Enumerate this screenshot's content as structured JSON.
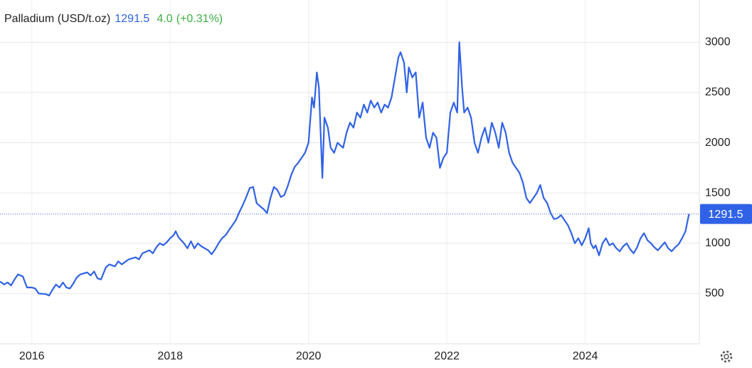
{
  "chart_data": {
    "type": "line",
    "title": "Palladium (USD/t.oz)",
    "price": 1291.5,
    "change": "4.0",
    "change_percent": "(+0.31%)",
    "color": "#2f62e6",
    "xlim": [
      2015.54,
      2025.65
    ],
    "xticks": [
      2016,
      2018,
      2020,
      2022,
      2024
    ],
    "ylim": [
      0,
      3420
    ],
    "yticks": [
      500,
      1000,
      1500,
      2000,
      2500,
      3000
    ],
    "grid": true,
    "x": [
      2015.54,
      2015.6,
      2015.65,
      2015.7,
      2015.75,
      2015.8,
      2015.87,
      2015.93,
      2016.0,
      2016.05,
      2016.1,
      2016.2,
      2016.25,
      2016.3,
      2016.35,
      2016.4,
      2016.45,
      2016.5,
      2016.55,
      2016.6,
      2016.65,
      2016.7,
      2016.8,
      2016.85,
      2016.9,
      2016.95,
      2017.0,
      2017.07,
      2017.12,
      2017.2,
      2017.25,
      2017.3,
      2017.4,
      2017.5,
      2017.55,
      2017.6,
      2017.7,
      2017.75,
      2017.8,
      2017.85,
      2017.9,
      2017.95,
      2018.0,
      2018.05,
      2018.08,
      2018.12,
      2018.2,
      2018.25,
      2018.3,
      2018.35,
      2018.4,
      2018.45,
      2018.5,
      2018.55,
      2018.6,
      2018.65,
      2018.7,
      2018.75,
      2018.8,
      2018.85,
      2018.9,
      2018.95,
      2019.0,
      2019.05,
      2019.1,
      2019.15,
      2019.2,
      2019.25,
      2019.28,
      2019.35,
      2019.4,
      2019.45,
      2019.5,
      2019.55,
      2019.6,
      2019.65,
      2019.7,
      2019.75,
      2019.8,
      2019.85,
      2019.9,
      2019.95,
      2020.0,
      2020.05,
      2020.08,
      2020.12,
      2020.15,
      2020.2,
      2020.23,
      2020.28,
      2020.32,
      2020.37,
      2020.42,
      2020.5,
      2020.55,
      2020.6,
      2020.65,
      2020.7,
      2020.75,
      2020.8,
      2020.85,
      2020.9,
      2020.95,
      2021.0,
      2021.05,
      2021.1,
      2021.15,
      2021.2,
      2021.25,
      2021.3,
      2021.33,
      2021.38,
      2021.42,
      2021.45,
      2021.5,
      2021.55,
      2021.6,
      2021.65,
      2021.7,
      2021.75,
      2021.8,
      2021.85,
      2021.9,
      2021.95,
      2022.0,
      2022.05,
      2022.1,
      2022.15,
      2022.18,
      2022.22,
      2022.25,
      2022.3,
      2022.35,
      2022.4,
      2022.45,
      2022.5,
      2022.55,
      2022.6,
      2022.65,
      2022.7,
      2022.75,
      2022.8,
      2022.85,
      2022.9,
      2022.95,
      2023.0,
      2023.05,
      2023.1,
      2023.15,
      2023.2,
      2023.25,
      2023.3,
      2023.35,
      2023.4,
      2023.45,
      2023.5,
      2023.55,
      2023.6,
      2023.65,
      2023.7,
      2023.75,
      2023.8,
      2023.85,
      2023.9,
      2023.95,
      2024.0,
      2024.05,
      2024.08,
      2024.12,
      2024.15,
      2024.2,
      2024.25,
      2024.3,
      2024.35,
      2024.4,
      2024.45,
      2024.5,
      2024.55,
      2024.6,
      2024.65,
      2024.7,
      2024.75,
      2024.8,
      2024.85,
      2024.9,
      2024.95,
      2025.0,
      2025.05,
      2025.1,
      2025.15,
      2025.2,
      2025.25,
      2025.3,
      2025.35,
      2025.4,
      2025.45,
      2025.5
    ],
    "values": [
      620,
      590,
      610,
      580,
      640,
      690,
      670,
      560,
      560,
      550,
      500,
      495,
      480,
      540,
      590,
      560,
      610,
      560,
      550,
      600,
      660,
      690,
      710,
      680,
      720,
      650,
      640,
      760,
      790,
      770,
      820,
      790,
      840,
      860,
      840,
      900,
      930,
      900,
      960,
      1000,
      980,
      1010,
      1050,
      1080,
      1120,
      1060,
      1000,
      950,
      1020,
      950,
      1000,
      970,
      950,
      930,
      890,
      940,
      1000,
      1050,
      1080,
      1130,
      1180,
      1230,
      1310,
      1380,
      1460,
      1550,
      1560,
      1400,
      1380,
      1340,
      1300,
      1450,
      1560,
      1530,
      1460,
      1480,
      1570,
      1680,
      1760,
      1800,
      1850,
      1900,
      2000,
      2450,
      2350,
      2700,
      2550,
      1650,
      2250,
      2150,
      1950,
      1900,
      2000,
      1950,
      2100,
      2200,
      2150,
      2300,
      2250,
      2380,
      2300,
      2420,
      2350,
      2400,
      2300,
      2380,
      2350,
      2450,
      2650,
      2850,
      2900,
      2800,
      2500,
      2750,
      2650,
      2700,
      2250,
      2400,
      2050,
      1950,
      2100,
      2050,
      1750,
      1850,
      1900,
      2300,
      2400,
      2300,
      3000,
      2550,
      2300,
      2350,
      2250,
      2000,
      1900,
      2050,
      2150,
      2000,
      2200,
      2100,
      1950,
      2200,
      2100,
      1900,
      1800,
      1750,
      1700,
      1600,
      1450,
      1400,
      1450,
      1500,
      1580,
      1450,
      1400,
      1300,
      1240,
      1250,
      1280,
      1230,
      1180,
      1100,
      1000,
      1050,
      980,
      1050,
      1150,
      1000,
      950,
      980,
      880,
      1000,
      1050,
      980,
      1000,
      950,
      920,
      970,
      1000,
      940,
      900,
      960,
      1050,
      1100,
      1030,
      1000,
      960,
      930,
      970,
      1010,
      950,
      920,
      960,
      990,
      1050,
      1120,
      1291.5
    ]
  }
}
